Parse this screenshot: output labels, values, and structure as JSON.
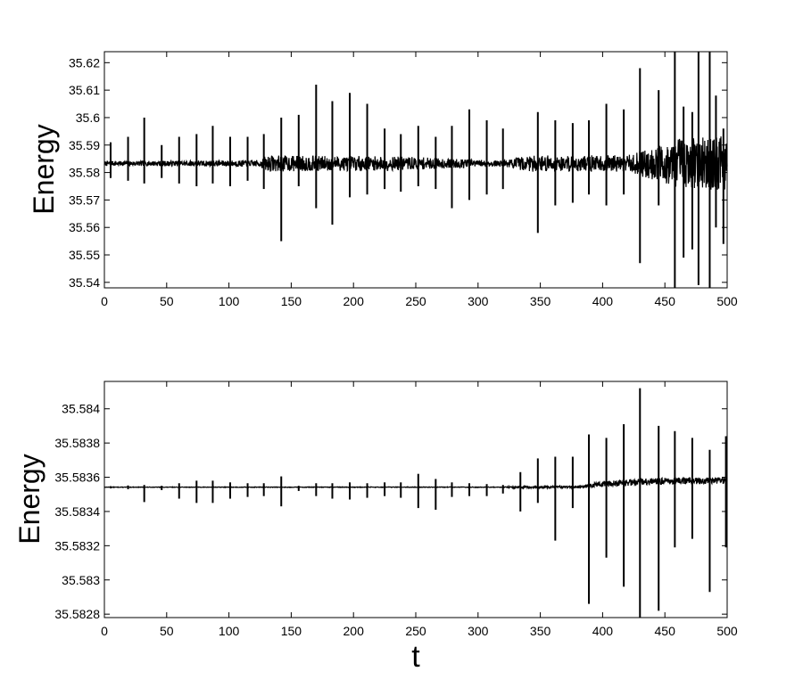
{
  "chart_data": [
    {
      "type": "line",
      "title": "",
      "xlabel": "",
      "ylabel": "Energy",
      "xlim": [
        0,
        500
      ],
      "ylim": [
        35.538,
        35.624
      ],
      "xticks": [
        0,
        50,
        100,
        150,
        200,
        250,
        300,
        350,
        400,
        450,
        500
      ],
      "xtick_labels": [
        "0",
        "50",
        "100",
        "150",
        "200",
        "250",
        "300",
        "350",
        "400",
        "450",
        "500"
      ],
      "yticks": [
        35.54,
        35.55,
        35.56,
        35.57,
        35.58,
        35.59,
        35.6,
        35.61,
        35.62
      ],
      "ytick_labels": [
        "35.54",
        "35.55",
        "35.56",
        "35.57",
        "35.58",
        "35.59",
        "35.6",
        "35.61",
        "35.62"
      ],
      "grid": false,
      "color": "#000000",
      "baseline": 35.5833,
      "noise_profile": [
        [
          0,
          0.0008
        ],
        [
          125,
          0.0012
        ],
        [
          130,
          0.003
        ],
        [
          240,
          0.0025
        ],
        [
          320,
          0.001
        ],
        [
          340,
          0.003
        ],
        [
          420,
          0.003
        ],
        [
          440,
          0.006
        ],
        [
          460,
          0.009
        ],
        [
          500,
          0.01
        ]
      ],
      "spikes": [
        {
          "x": 5,
          "max": 35.591,
          "min": 35.578
        },
        {
          "x": 19,
          "max": 35.593,
          "min": 35.577
        },
        {
          "x": 32,
          "max": 35.6,
          "min": 35.576
        },
        {
          "x": 46,
          "max": 35.59,
          "min": 35.578
        },
        {
          "x": 60,
          "max": 35.593,
          "min": 35.576
        },
        {
          "x": 74,
          "max": 35.594,
          "min": 35.575
        },
        {
          "x": 87,
          "max": 35.597,
          "min": 35.576
        },
        {
          "x": 101,
          "max": 35.593,
          "min": 35.575
        },
        {
          "x": 115,
          "max": 35.593,
          "min": 35.577
        },
        {
          "x": 128,
          "max": 35.594,
          "min": 35.574
        },
        {
          "x": 142,
          "max": 35.6,
          "min": 35.555
        },
        {
          "x": 156,
          "max": 35.601,
          "min": 35.575
        },
        {
          "x": 170,
          "max": 35.612,
          "min": 35.567
        },
        {
          "x": 183,
          "max": 35.606,
          "min": 35.561
        },
        {
          "x": 197,
          "max": 35.609,
          "min": 35.571
        },
        {
          "x": 211,
          "max": 35.605,
          "min": 35.572
        },
        {
          "x": 225,
          "max": 35.596,
          "min": 35.574
        },
        {
          "x": 238,
          "max": 35.594,
          "min": 35.573
        },
        {
          "x": 252,
          "max": 35.597,
          "min": 35.575
        },
        {
          "x": 266,
          "max": 35.593,
          "min": 35.574
        },
        {
          "x": 279,
          "max": 35.597,
          "min": 35.567
        },
        {
          "x": 293,
          "max": 35.603,
          "min": 35.57
        },
        {
          "x": 307,
          "max": 35.599,
          "min": 35.572
        },
        {
          "x": 320,
          "max": 35.596,
          "min": 35.574
        },
        {
          "x": 348,
          "max": 35.602,
          "min": 35.558
        },
        {
          "x": 362,
          "max": 35.599,
          "min": 35.568
        },
        {
          "x": 376,
          "max": 35.598,
          "min": 35.569
        },
        {
          "x": 389,
          "max": 35.599,
          "min": 35.572
        },
        {
          "x": 403,
          "max": 35.605,
          "min": 35.568
        },
        {
          "x": 417,
          "max": 35.603,
          "min": 35.572
        },
        {
          "x": 430,
          "max": 35.618,
          "min": 35.547
        },
        {
          "x": 445,
          "max": 35.61,
          "min": 35.568
        },
        {
          "x": 458,
          "max": 35.624,
          "min": 35.538
        },
        {
          "x": 465,
          "max": 35.604,
          "min": 35.549
        },
        {
          "x": 472,
          "max": 35.602,
          "min": 35.552
        },
        {
          "x": 477,
          "max": 35.624,
          "min": 35.539
        },
        {
          "x": 486,
          "max": 35.624,
          "min": 35.538
        },
        {
          "x": 491,
          "max": 35.608,
          "min": 35.56
        },
        {
          "x": 497,
          "max": 35.596,
          "min": 35.554
        }
      ]
    },
    {
      "type": "line",
      "title": "",
      "xlabel": "t",
      "ylabel": "Energy",
      "xlim": [
        0,
        500
      ],
      "ylim": [
        35.58278,
        35.58416
      ],
      "xticks": [
        0,
        50,
        100,
        150,
        200,
        250,
        300,
        350,
        400,
        450,
        500
      ],
      "xtick_labels": [
        "0",
        "50",
        "100",
        "150",
        "200",
        "250",
        "300",
        "350",
        "400",
        "450",
        "500"
      ],
      "yticks": [
        35.5828,
        35.583,
        35.5832,
        35.5834,
        35.5836,
        35.5838,
        35.584
      ],
      "ytick_labels": [
        "35.5828",
        "35.583",
        "35.5832",
        "35.5834",
        "35.5836",
        "35.5838",
        "35.584"
      ],
      "grid": false,
      "color": "#000000",
      "baseline": 35.583542,
      "baseline_drift": [
        [
          0,
          35.583542
        ],
        [
          380,
          35.583542
        ],
        [
          400,
          35.58356
        ],
        [
          430,
          35.583575
        ],
        [
          500,
          35.58358
        ]
      ],
      "noise_profile": [
        [
          0,
          1.5e-06
        ],
        [
          320,
          2e-06
        ],
        [
          330,
          6e-06
        ],
        [
          380,
          6e-06
        ],
        [
          395,
          1.5e-05
        ],
        [
          420,
          2e-05
        ],
        [
          500,
          2e-05
        ]
      ],
      "spikes": [
        {
          "x": 5,
          "max": 35.583548,
          "min": 35.583535
        },
        {
          "x": 19,
          "max": 35.583552,
          "min": 35.58353
        },
        {
          "x": 32,
          "max": 35.583555,
          "min": 35.583455
        },
        {
          "x": 46,
          "max": 35.58355,
          "min": 35.583525
        },
        {
          "x": 60,
          "max": 35.583565,
          "min": 35.583475
        },
        {
          "x": 74,
          "max": 35.58358,
          "min": 35.58345
        },
        {
          "x": 87,
          "max": 35.58358,
          "min": 35.58345
        },
        {
          "x": 101,
          "max": 35.58357,
          "min": 35.583475
        },
        {
          "x": 115,
          "max": 35.583565,
          "min": 35.583485
        },
        {
          "x": 128,
          "max": 35.583565,
          "min": 35.58349
        },
        {
          "x": 142,
          "max": 35.583605,
          "min": 35.58343
        },
        {
          "x": 156,
          "max": 35.58355,
          "min": 35.58352
        },
        {
          "x": 170,
          "max": 35.583565,
          "min": 35.58349
        },
        {
          "x": 183,
          "max": 35.583565,
          "min": 35.583475
        },
        {
          "x": 197,
          "max": 35.58357,
          "min": 35.58347
        },
        {
          "x": 211,
          "max": 35.583565,
          "min": 35.58348
        },
        {
          "x": 225,
          "max": 35.58357,
          "min": 35.58349
        },
        {
          "x": 238,
          "max": 35.58357,
          "min": 35.58348
        },
        {
          "x": 252,
          "max": 35.58362,
          "min": 35.58342
        },
        {
          "x": 266,
          "max": 35.58359,
          "min": 35.58341
        },
        {
          "x": 279,
          "max": 35.58357,
          "min": 35.583485
        },
        {
          "x": 293,
          "max": 35.583565,
          "min": 35.58349
        },
        {
          "x": 307,
          "max": 35.58356,
          "min": 35.58349
        },
        {
          "x": 320,
          "max": 35.583555,
          "min": 35.583505
        },
        {
          "x": 334,
          "max": 35.58363,
          "min": 35.5834
        },
        {
          "x": 348,
          "max": 35.58371,
          "min": 35.58345
        },
        {
          "x": 362,
          "max": 35.58372,
          "min": 35.58323
        },
        {
          "x": 376,
          "max": 35.58372,
          "min": 35.58342
        },
        {
          "x": 389,
          "max": 35.58385,
          "min": 35.58286
        },
        {
          "x": 403,
          "max": 35.58383,
          "min": 35.58313
        },
        {
          "x": 417,
          "max": 35.58391,
          "min": 35.58296
        },
        {
          "x": 430,
          "max": 35.58412,
          "min": 35.58278
        },
        {
          "x": 445,
          "max": 35.5839,
          "min": 35.58282
        },
        {
          "x": 458,
          "max": 35.58387,
          "min": 35.58319
        },
        {
          "x": 472,
          "max": 35.58383,
          "min": 35.58324
        },
        {
          "x": 486,
          "max": 35.58376,
          "min": 35.58293
        },
        {
          "x": 499,
          "max": 35.58384,
          "min": 35.58319
        }
      ]
    }
  ]
}
